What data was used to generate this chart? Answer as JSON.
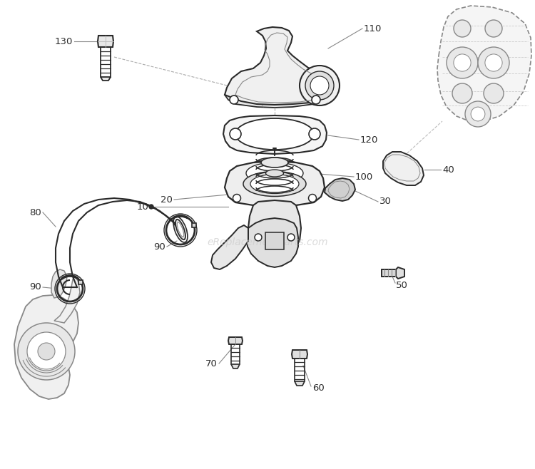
{
  "bg_color": "#ffffff",
  "line_color": "#2a2a2a",
  "gray_color": "#888888",
  "light_gray": "#bbbbbb",
  "watermark_text": "eReplacementParts.com",
  "watermark_color": "#cccccc",
  "figw": 7.5,
  "figh": 6.58,
  "dpi": 100
}
